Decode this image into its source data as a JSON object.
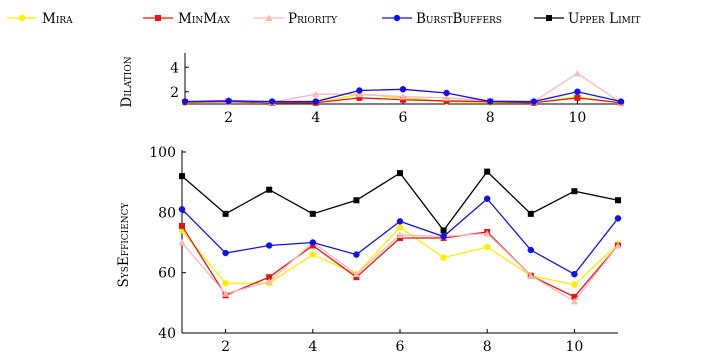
{
  "legend": {
    "placement": "top",
    "entries": [
      {
        "label": "Mira",
        "color": "#ffee00",
        "marker": "circle"
      },
      {
        "label": "MinMax",
        "color": "#ee1111",
        "marker": "square"
      },
      {
        "label": "Priority",
        "color": "#ffb6b6",
        "marker": "triangle"
      },
      {
        "label": "BurstBuffers",
        "color": "#1111ee",
        "marker": "circle"
      },
      {
        "label": "Upper Limit",
        "color": "#000000",
        "marker": "square"
      }
    ]
  },
  "chart_data": [
    {
      "type": "line",
      "ylabel": "Dilation",
      "x": [
        1,
        2,
        3,
        4,
        5,
        6,
        7,
        8,
        9,
        10,
        11
      ],
      "xticks": [
        2,
        4,
        6,
        8,
        10
      ],
      "yticks": [
        2,
        4
      ],
      "xlim": [
        1,
        11
      ],
      "ylim": [
        1,
        5
      ],
      "grid": false,
      "series": [
        {
          "name": "Mira",
          "color": "#ffee00",
          "marker": "circle",
          "values": [
            1.1,
            1.2,
            1.1,
            1.1,
            1.8,
            1.5,
            1.2,
            1.1,
            1.1,
            1.6,
            1.05
          ]
        },
        {
          "name": "MinMax",
          "color": "#ee1111",
          "marker": "square",
          "values": [
            1.15,
            1.2,
            1.1,
            1.1,
            1.5,
            1.35,
            1.25,
            1.2,
            1.1,
            1.5,
            1.1
          ]
        },
        {
          "name": "Priority",
          "color": "#ffb6b6",
          "marker": "triangle",
          "values": [
            1.2,
            1.3,
            1.15,
            1.8,
            1.8,
            1.6,
            1.5,
            1.3,
            1.2,
            3.5,
            1.1
          ]
        },
        {
          "name": "BurstBuffers",
          "color": "#1111ee",
          "marker": "circle",
          "values": [
            1.2,
            1.25,
            1.2,
            1.2,
            2.1,
            2.2,
            1.9,
            1.2,
            1.2,
            2.0,
            1.2
          ]
        }
      ]
    },
    {
      "type": "line",
      "ylabel": "SysEfficiency",
      "x": [
        1,
        2,
        3,
        4,
        5,
        6,
        7,
        8,
        9,
        10,
        11
      ],
      "xticks": [
        2,
        4,
        6,
        8,
        10
      ],
      "yticks": [
        40,
        60,
        80,
        100
      ],
      "xlim": [
        1,
        11
      ],
      "ylim": [
        40,
        100
      ],
      "grid": false,
      "series": [
        {
          "name": "Mira",
          "color": "#ffee00",
          "marker": "circle",
          "values": [
            74,
            56.5,
            56.5,
            66,
            59.5,
            75,
            65,
            68.5,
            59,
            56,
            69.5
          ]
        },
        {
          "name": "MinMax",
          "color": "#ee1111",
          "marker": "square",
          "values": [
            75.5,
            52.5,
            58.5,
            69,
            58.5,
            71.5,
            71.5,
            73.5,
            59,
            52,
            69
          ]
        },
        {
          "name": "Priority",
          "color": "#ffb6b6",
          "marker": "triangle",
          "values": [
            70,
            53,
            57,
            70,
            59.5,
            72.5,
            72,
            73,
            59,
            50.5,
            69
          ]
        },
        {
          "name": "BurstBuffers",
          "color": "#1111ee",
          "marker": "circle",
          "values": [
            81,
            66.5,
            69,
            70,
            66,
            77,
            72,
            84.5,
            67.5,
            59.5,
            78
          ]
        },
        {
          "name": "Upper Limit",
          "color": "#000000",
          "marker": "square",
          "values": [
            92,
            79.5,
            87.5,
            79.5,
            84,
            93,
            74,
            93.5,
            79.5,
            87,
            84
          ]
        }
      ]
    }
  ]
}
